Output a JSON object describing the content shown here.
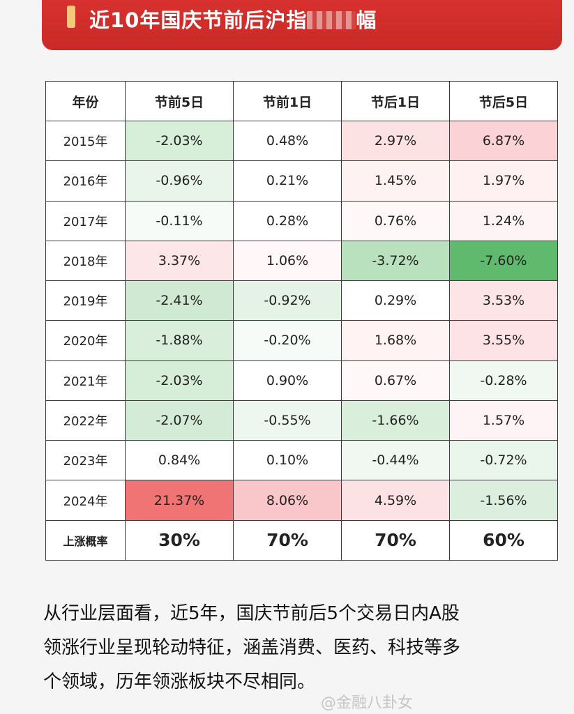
{
  "banner": {
    "title": "近10年国庆节前后沪指",
    "title_end": "幅"
  },
  "table": {
    "headers": [
      "年份",
      "节前5日",
      "节前1日",
      "节后1日",
      "节后5日"
    ],
    "rows": [
      {
        "year": "2015年",
        "cells": [
          "-2.03%",
          "0.48%",
          "2.97%",
          "6.87%"
        ],
        "colors": [
          "#d7eed9",
          "#ffffff",
          "#fde2e4",
          "#fbd2d5"
        ]
      },
      {
        "year": "2016年",
        "cells": [
          "-0.96%",
          "0.21%",
          "1.45%",
          "1.97%"
        ],
        "colors": [
          "#e9f5ea",
          "#ffffff",
          "#fff2f3",
          "#fff0f1"
        ]
      },
      {
        "year": "2017年",
        "cells": [
          "-0.11%",
          "0.28%",
          "0.76%",
          "1.24%"
        ],
        "colors": [
          "#f7fbf7",
          "#ffffff",
          "#fff8f8",
          "#fff4f5"
        ]
      },
      {
        "year": "2018年",
        "cells": [
          "3.37%",
          "1.06%",
          "-3.72%",
          "-7.60%"
        ],
        "colors": [
          "#fde6e8",
          "#fff7f8",
          "#b9e1be",
          "#5fba6e"
        ]
      },
      {
        "year": "2019年",
        "cells": [
          "-2.41%",
          "-0.92%",
          "0.29%",
          "3.53%"
        ],
        "colors": [
          "#cfe9d3",
          "#e5f3e6",
          "#ffffff",
          "#fde4e6"
        ]
      },
      {
        "year": "2020年",
        "cells": [
          "-1.88%",
          "-0.20%",
          "1.68%",
          "3.55%"
        ],
        "colors": [
          "#d9eedb",
          "#f7fbf7",
          "#fff3f4",
          "#fde3e5"
        ]
      },
      {
        "year": "2021年",
        "cells": [
          "-2.03%",
          "0.90%",
          "0.67%",
          "-0.28%"
        ],
        "colors": [
          "#d6edd8",
          "#ffffff",
          "#fff8f8",
          "#f0f8f1"
        ]
      },
      {
        "year": "2022年",
        "cells": [
          "-2.07%",
          "-0.55%",
          "-1.66%",
          "1.57%"
        ],
        "colors": [
          "#d4ecd7",
          "#eef7ef",
          "#d9eedb",
          "#fff4f5"
        ]
      },
      {
        "year": "2023年",
        "cells": [
          "0.84%",
          "0.10%",
          "-0.44%",
          "-0.72%"
        ],
        "colors": [
          "#ffffff",
          "#ffffff",
          "#f1f8f2",
          "#eaf5eb"
        ]
      },
      {
        "year": "2024年",
        "cells": [
          "21.37%",
          "8.06%",
          "4.59%",
          "-1.56%"
        ],
        "colors": [
          "#f07474",
          "#f9c6ca",
          "#fde2e5",
          "#dcefde"
        ]
      }
    ],
    "probability": {
      "label": "上涨概率",
      "cells": [
        "30%",
        "70%",
        "70%",
        "60%"
      ]
    }
  },
  "paragraph": {
    "lines": [
      "从行业层面看，近5年，国庆节前后5个交易日内A股",
      "领涨行业呈现轮动特征，涵盖消费、医药、科技等多",
      "个领域，历年领涨板块不尽相同。"
    ]
  },
  "watermark": "@金融八卦女"
}
